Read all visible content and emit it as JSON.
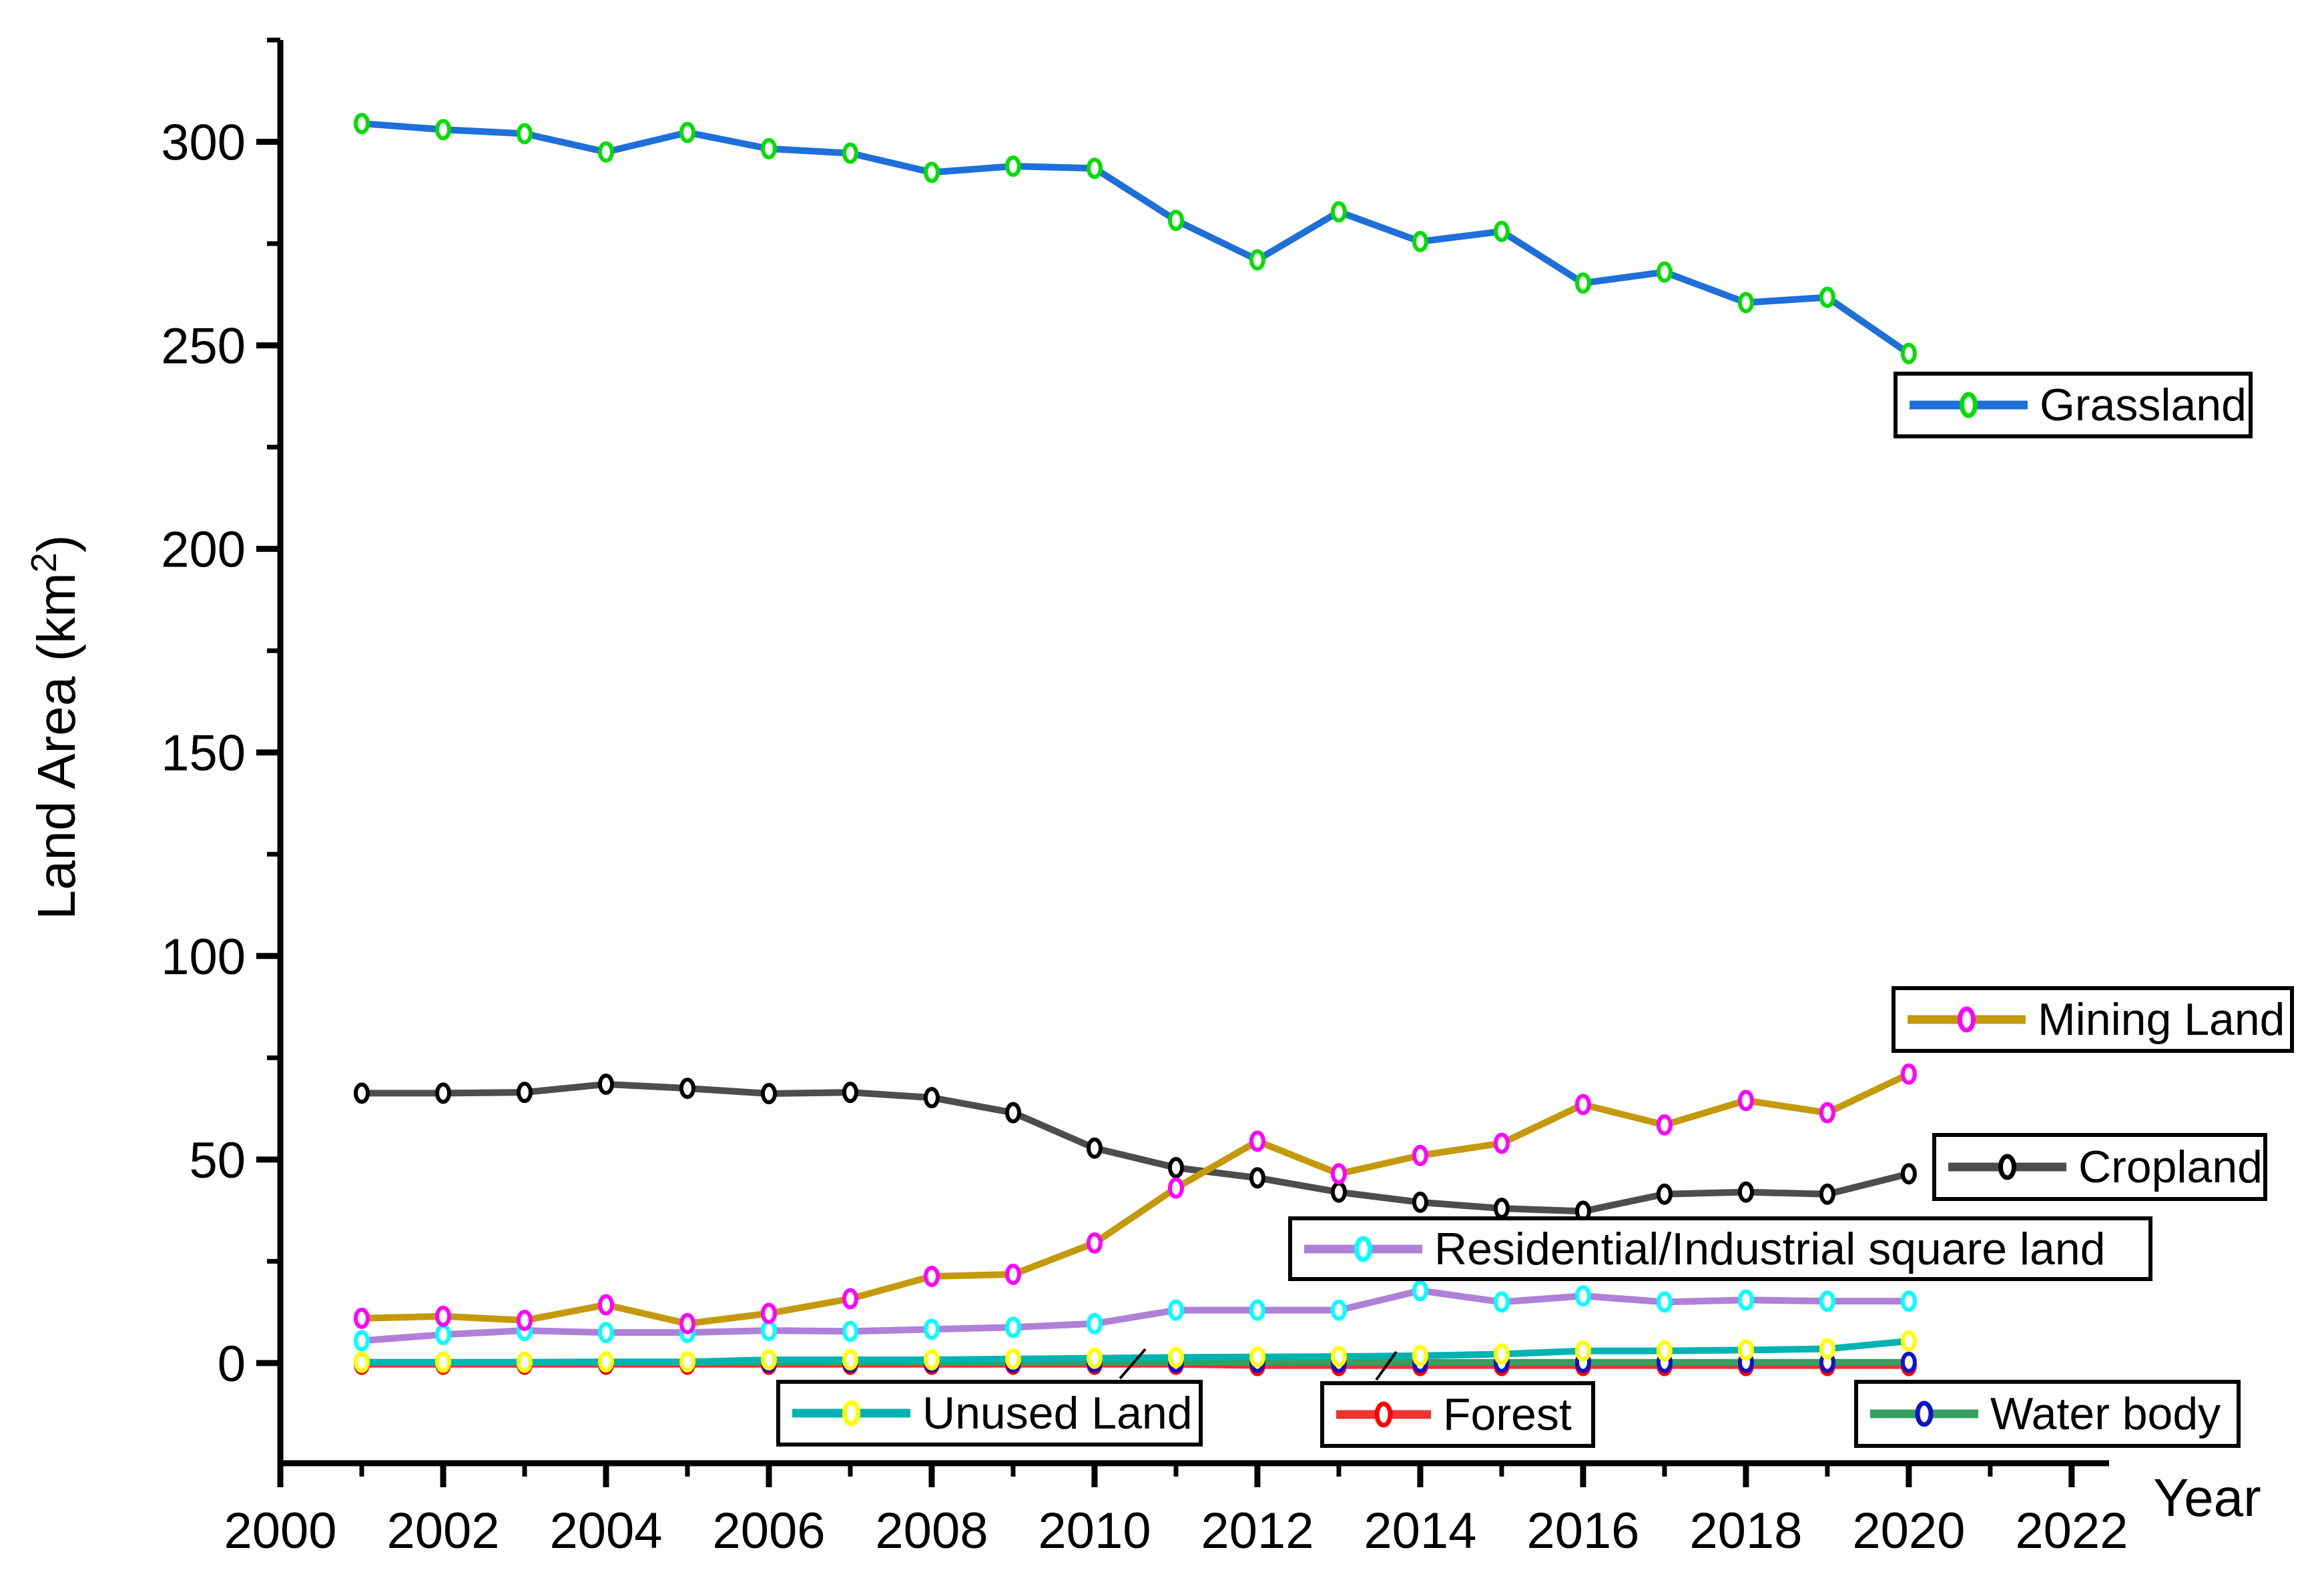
{
  "axes": {
    "x": {
      "label": "Year",
      "tick_labels": [
        "2000",
        "2002",
        "2004",
        "2006",
        "2008",
        "2010",
        "2012",
        "2014",
        "2016",
        "2018",
        "2020",
        "2022"
      ]
    },
    "y": {
      "label_pre": "Land Area  (km",
      "label_sup": "2",
      "label_post": ")",
      "tick_labels": [
        "0",
        "50",
        "100",
        "150",
        "200",
        "250",
        "300"
      ]
    }
  },
  "legend_labels": {
    "grassland": "Grassland",
    "mining": "Mining Land",
    "cropland": "Cropland",
    "residential": "Residential/Industrial square land",
    "unused": "Unused Land",
    "forest": "Forest",
    "water": "Water body"
  },
  "chart_data": {
    "type": "line",
    "title": "",
    "xlabel": "Year",
    "ylabel": "Land Area (km2)",
    "x": [
      2001,
      2002,
      2003,
      2004,
      2005,
      2006,
      2007,
      2008,
      2009,
      2010,
      2011,
      2012,
      2013,
      2014,
      2015,
      2016,
      2017,
      2018,
      2019,
      2020
    ],
    "xlim": [
      2000,
      2022.46
    ],
    "ylim": [
      -24.6,
      325
    ],
    "x_major_ticks": [
      2000,
      2002,
      2004,
      2006,
      2008,
      2010,
      2012,
      2014,
      2016,
      2018,
      2020,
      2022
    ],
    "x_minor_ticks": [
      2001,
      2003,
      2005,
      2007,
      2009,
      2011,
      2013,
      2015,
      2017,
      2019,
      2021
    ],
    "y_major_ticks": [
      0,
      50,
      100,
      150,
      200,
      250,
      300
    ],
    "y_minor_ticks": [
      25,
      75,
      125,
      175,
      225,
      275,
      325
    ],
    "grid": false,
    "legend_position": "inside-boxes",
    "series": [
      {
        "name": "Grassland",
        "line_color": "#1e6fd9",
        "marker_color": "#00dd00",
        "values": [
          304.5,
          303,
          302,
          297.5,
          302.3,
          298.3,
          297.2,
          292.5,
          294,
          293.5,
          280.7,
          271,
          282.8,
          275.5,
          278,
          265.3,
          268,
          260.5,
          261.8,
          248
        ]
      },
      {
        "name": "Mining Land",
        "line_color": "#c49a0c",
        "marker_color": "#ff00ff",
        "values": [
          11,
          11.5,
          10.5,
          14.3,
          9.7,
          12.2,
          15.8,
          21.3,
          21.8,
          29.5,
          43,
          54.5,
          46.5,
          51,
          54,
          63.5,
          58.5,
          64.5,
          61.5,
          71
        ]
      },
      {
        "name": "Cropland",
        "line_color": "#4d4d4d",
        "marker_color": "#000000",
        "values": [
          66.3,
          66.3,
          66.5,
          68.5,
          67.5,
          66.2,
          66.5,
          65.2,
          61.5,
          52.8,
          48,
          45.5,
          42,
          39.5,
          38,
          37.3,
          41.5,
          42,
          41.5,
          46.5
        ]
      },
      {
        "name": "Residential/Industrial square land",
        "line_color": "#b080d8",
        "marker_color": "#00ffff",
        "values": [
          5.5,
          7,
          8,
          7.5,
          7.5,
          8,
          7.8,
          8.3,
          8.8,
          9.7,
          13,
          13,
          13,
          17.8,
          15,
          16.5,
          15,
          15.5,
          15.2,
          15.2
        ]
      },
      {
        "name": "Unused Land",
        "line_color": "#00b3b3",
        "marker_color": "#ffff00",
        "values": [
          0.2,
          0.2,
          0.2,
          0.3,
          0.3,
          0.8,
          0.8,
          0.8,
          1,
          1.2,
          1.4,
          1.5,
          1.6,
          1.8,
          2.2,
          3,
          3,
          3.2,
          3.5,
          5.4
        ]
      },
      {
        "name": "Forest",
        "line_color": "#ee3333",
        "marker_color": "#ff0000",
        "values": [
          -0.3,
          -0.3,
          -0.3,
          -0.3,
          -0.3,
          -0.3,
          -0.3,
          -0.3,
          -0.3,
          -0.3,
          -0.3,
          -0.6,
          -0.6,
          -0.6,
          -0.6,
          -0.6,
          -0.6,
          -0.6,
          -0.6,
          -0.6
        ]
      },
      {
        "name": "Water body",
        "line_color": "#35a060",
        "marker_color": "#1111cc",
        "values": [
          0.2,
          0.2,
          0.2,
          0.2,
          0.2,
          0.2,
          0.2,
          0.2,
          0.2,
          0.2,
          0.2,
          0.2,
          0.2,
          0.2,
          0.2,
          0.2,
          0.2,
          0.2,
          0.2,
          0.2
        ]
      }
    ]
  }
}
